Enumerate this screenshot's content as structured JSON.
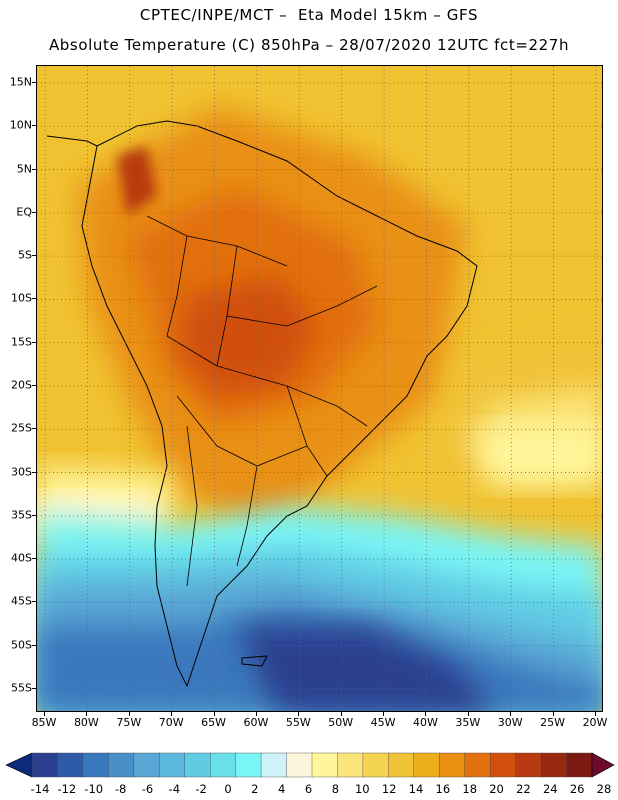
{
  "header": {
    "title_line1": "CPTEC/INPE/MCT –  Eta Model 15km – GFS",
    "title_line2": "Absolute Temperature (C) 850hPa – 28/07/2020 12UTC fct=227h"
  },
  "axes": {
    "lat_labels": [
      "15N",
      "10N",
      "5N",
      "EQ",
      "5S",
      "10S",
      "15S",
      "20S",
      "25S",
      "30S",
      "35S",
      "40S",
      "45S",
      "50S",
      "55S"
    ],
    "lon_labels": [
      "85W",
      "80W",
      "75W",
      "70W",
      "65W",
      "60W",
      "55W",
      "50W",
      "45W",
      "40W",
      "35W",
      "30W",
      "25W",
      "20W"
    ]
  },
  "colorbar": {
    "labels": [
      "-14",
      "-12",
      "-10",
      "-8",
      "-6",
      "-4",
      "-2",
      "0",
      "2",
      "4",
      "6",
      "8",
      "10",
      "12",
      "14",
      "16",
      "18",
      "20",
      "22",
      "24",
      "26",
      "28"
    ],
    "colors": [
      "#2a3f8f",
      "#2f5aa8",
      "#3a78bd",
      "#4a90c8",
      "#5aa6d4",
      "#5ab8dc",
      "#60cce4",
      "#6ae0ea",
      "#7af5f5",
      "#cff2f8",
      "#fdf5dc",
      "#fff59a",
      "#fbe57a",
      "#f5d450",
      "#f0c238",
      "#edae1e",
      "#e99012",
      "#e2700c",
      "#d0500c",
      "#b83a10",
      "#9a2810",
      "#7a1a12"
    ],
    "under_color": "#0c2a7a",
    "over_color": "#6e0b2a",
    "ocean_base_color": "#f0c232"
  }
}
